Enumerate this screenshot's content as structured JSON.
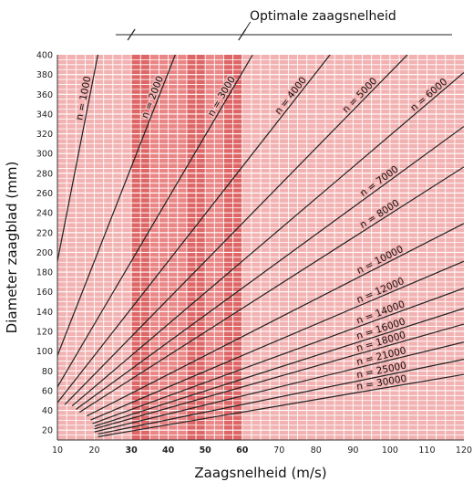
{
  "chart_data": {
    "type": "line",
    "title": "",
    "xlabel": "Zaagsnelheid (m/s)",
    "ylabel": "Diameter zaagblad (mm)",
    "xlim": [
      10,
      120
    ],
    "ylim": [
      10,
      400
    ],
    "x_ticks": [
      10,
      20,
      30,
      40,
      50,
      60,
      70,
      80,
      90,
      100,
      110,
      120
    ],
    "x_ticks_bold": [
      30,
      40,
      50,
      60
    ],
    "y_ticks": [
      20,
      40,
      60,
      80,
      100,
      120,
      140,
      160,
      180,
      200,
      220,
      240,
      260,
      280,
      300,
      320,
      340,
      360,
      380,
      400
    ],
    "grid": true,
    "optimal_band": {
      "label": "Optimale zaagsnelheid",
      "x_start": 30,
      "x_end": 60,
      "x_dark": [
        30,
        35,
        45,
        50,
        55,
        60
      ]
    },
    "colors": {
      "background": "#f2b2b2",
      "band": "#ea8686",
      "band_dark": "#de6666",
      "grid": "#ffffff",
      "line": "#222222"
    },
    "series": [
      {
        "name": "n = 1000",
        "rpm": 1000,
        "x_range": [
          10,
          21
        ]
      },
      {
        "name": "n = 2000",
        "rpm": 2000,
        "x_range": [
          10,
          42
        ]
      },
      {
        "name": "n = 3000",
        "rpm": 3000,
        "x_range": [
          10,
          62.8
        ]
      },
      {
        "name": "n = 4000",
        "rpm": 4000,
        "x_range": [
          10,
          83.8
        ]
      },
      {
        "name": "n = 5000",
        "rpm": 5000,
        "x_range": [
          12,
          104.7
        ]
      },
      {
        "name": "n = 6000",
        "rpm": 6000,
        "x_range": [
          14,
          120
        ]
      },
      {
        "name": "n = 7000",
        "rpm": 7000,
        "x_range": [
          15,
          120
        ]
      },
      {
        "name": "n = 8000",
        "rpm": 8000,
        "x_range": [
          16,
          120
        ]
      },
      {
        "name": "n = 10000",
        "rpm": 10000,
        "x_range": [
          18,
          120
        ]
      },
      {
        "name": "n = 12000",
        "rpm": 12000,
        "x_range": [
          19,
          120
        ]
      },
      {
        "name": "n = 14000",
        "rpm": 14000,
        "x_range": [
          19.5,
          120
        ]
      },
      {
        "name": "n = 16000",
        "rpm": 16000,
        "x_range": [
          20,
          120
        ]
      },
      {
        "name": "n = 18000",
        "rpm": 18000,
        "x_range": [
          20,
          120
        ]
      },
      {
        "name": "n = 21000",
        "rpm": 21000,
        "x_range": [
          20,
          120
        ]
      },
      {
        "name": "n = 25000",
        "rpm": 25000,
        "x_range": [
          21,
          120
        ]
      },
      {
        "name": "n = 30000",
        "rpm": 30000,
        "x_range": [
          21,
          120
        ]
      }
    ]
  }
}
